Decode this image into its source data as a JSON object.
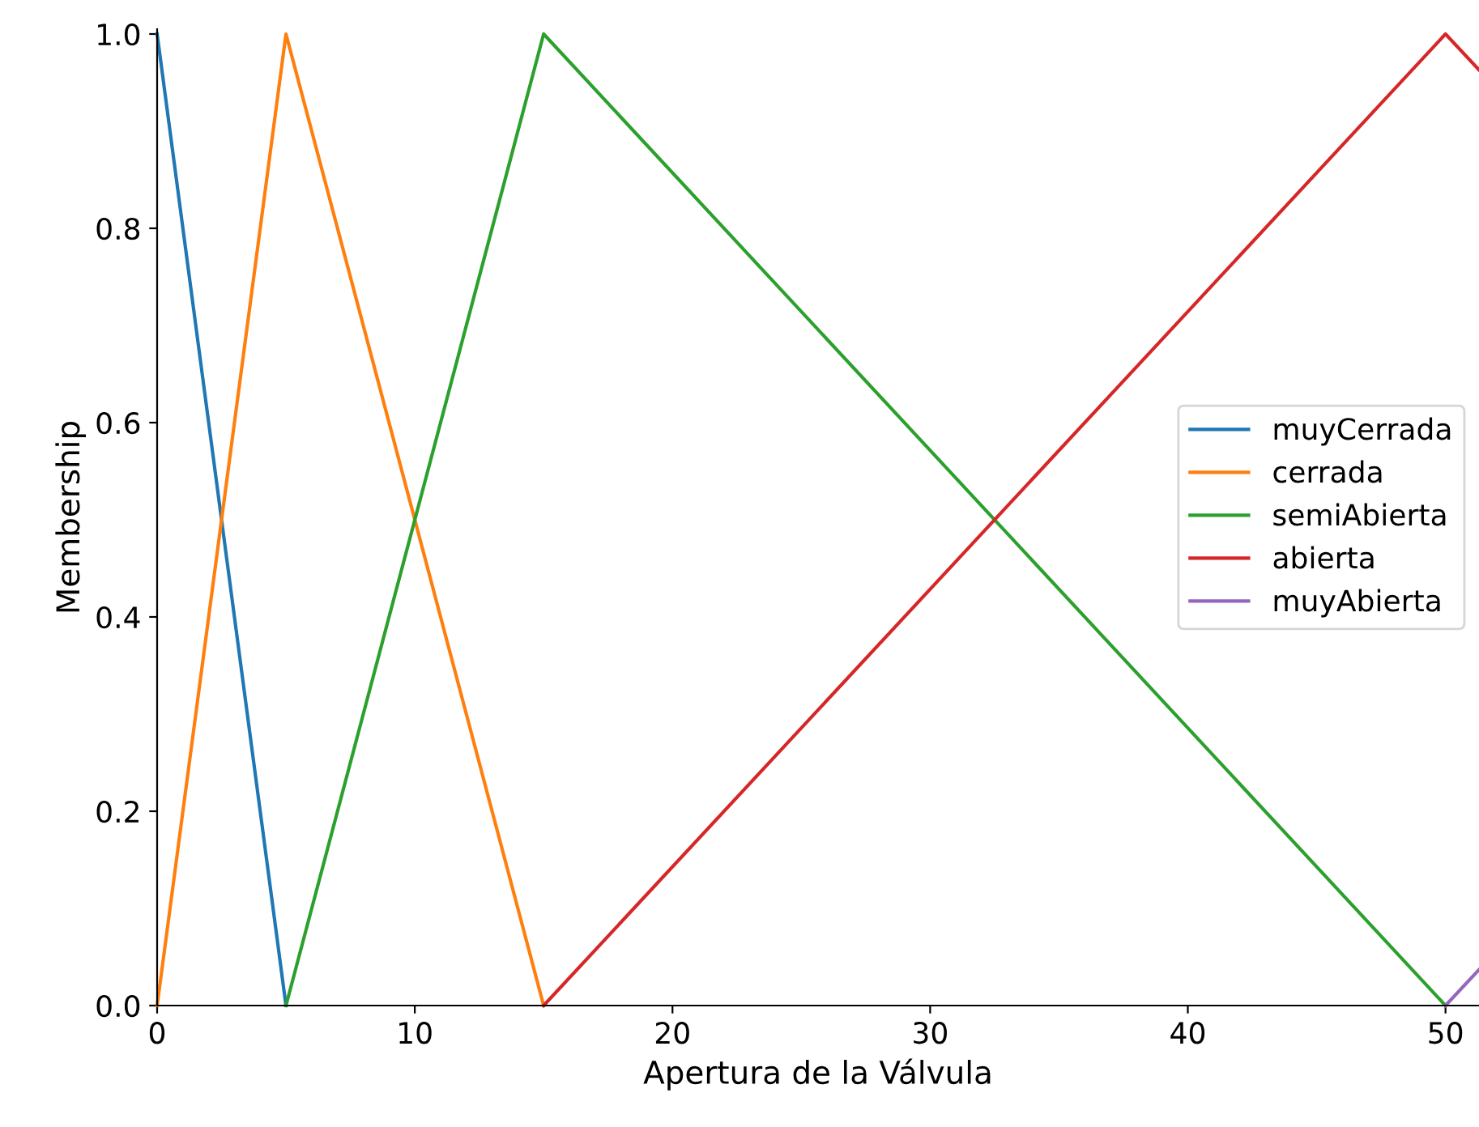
{
  "chart_data": {
    "type": "line",
    "xlabel": "Apertura de la Válvula",
    "ylabel": "Membership",
    "series": [
      {
        "name": "muyCerrada",
        "color": "#1f77b4",
        "x": [
          0,
          5
        ],
        "values": [
          1.0,
          0.0
        ]
      },
      {
        "name": "cerrada",
        "color": "#ff7f0e",
        "x": [
          0,
          5,
          15
        ],
        "values": [
          0.0,
          1.0,
          0.0
        ]
      },
      {
        "name": "semiAbierta",
        "color": "#2ca02c",
        "x": [
          5,
          15,
          50
        ],
        "values": [
          0.0,
          1.0,
          0.0
        ]
      },
      {
        "name": "abierta",
        "color": "#d62728",
        "x": [
          15,
          50,
          51.3
        ],
        "values": [
          0.0,
          1.0,
          0.963
        ]
      },
      {
        "name": "muyAbierta",
        "color": "#9467bd",
        "x": [
          50,
          51.3
        ],
        "values": [
          0.0,
          0.037
        ]
      }
    ],
    "xlim": [
      0,
      51.3
    ],
    "ylim": [
      0,
      1.005
    ],
    "xticks": [
      0,
      10,
      20,
      30,
      40,
      50
    ],
    "yticks": [
      {
        "value": 0,
        "label": "0.0"
      },
      {
        "value": 0.2,
        "label": "0.2"
      },
      {
        "value": 0.4,
        "label": "0.4"
      },
      {
        "value": 0.6,
        "label": "0.6"
      },
      {
        "value": 0.8,
        "label": "0.8"
      },
      {
        "value": 1.0,
        "label": "1.0"
      }
    ],
    "legend": "center right",
    "grid": false,
    "marker": "none",
    "line_style": "solid"
  }
}
